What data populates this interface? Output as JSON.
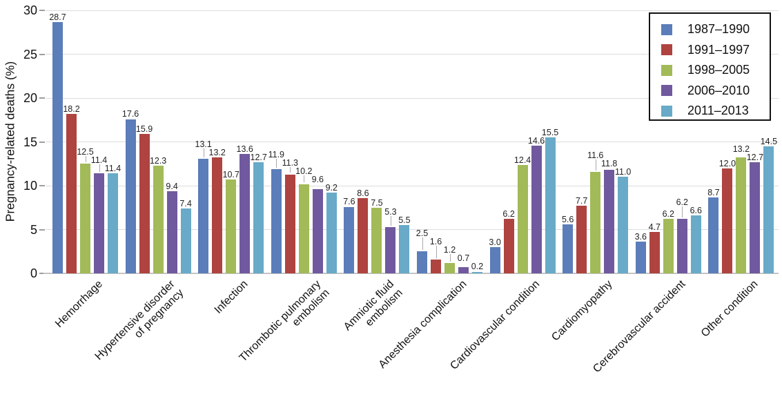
{
  "chart_data": {
    "type": "bar",
    "title": "",
    "xlabel": "",
    "ylabel": "Pregnancy-related deaths (%)",
    "ylim": [
      0,
      30
    ],
    "yticks": [
      0,
      5,
      10,
      15,
      20,
      25,
      30
    ],
    "grid": true,
    "legend_position": "top-right",
    "value_labels_shown": true,
    "value_label_decimals": 1,
    "categories": [
      "Hemorrhage",
      "Hypertensive disorder\nof pregnancy",
      "Infection",
      "Thrombotic pulmonary\nembolism",
      "Amniotic fluid\nembolism",
      "Anesthesia complication",
      "Cardiovascular condition",
      "Cardiomyopathy",
      "Cerebrovascular accident",
      "Other condition"
    ],
    "series": [
      {
        "name": "1987–1990",
        "color": "#5b7db9",
        "values": [
          28.7,
          17.6,
          13.1,
          11.9,
          7.6,
          2.5,
          3.0,
          5.6,
          3.6,
          8.7
        ]
      },
      {
        "name": "1991–1997",
        "color": "#ae4340",
        "values": [
          18.2,
          15.9,
          13.2,
          11.3,
          8.6,
          1.6,
          6.2,
          7.7,
          4.7,
          12.0
        ]
      },
      {
        "name": "1998–2005",
        "color": "#a2ba58",
        "values": [
          12.5,
          12.3,
          10.7,
          10.2,
          7.5,
          1.2,
          12.4,
          11.6,
          6.2,
          13.2
        ]
      },
      {
        "name": "2006–2010",
        "color": "#70599e",
        "values": [
          11.4,
          9.4,
          13.6,
          9.6,
          5.3,
          0.7,
          14.6,
          11.8,
          6.2,
          12.7
        ]
      },
      {
        "name": "2011–2013",
        "color": "#68aac8",
        "values": [
          11.4,
          7.4,
          12.7,
          9.2,
          5.5,
          0.2,
          15.5,
          11.0,
          6.6,
          14.5
        ]
      }
    ]
  },
  "colors": {
    "background": "#ffffff",
    "gridline": "#dcdcdc",
    "baseline": "#c4c4c4",
    "tick": "#9e9e9e",
    "leader_line": "#a8a8a8",
    "axis_text": "#111111",
    "value_text": "#222222",
    "legend_border": "#111111"
  }
}
